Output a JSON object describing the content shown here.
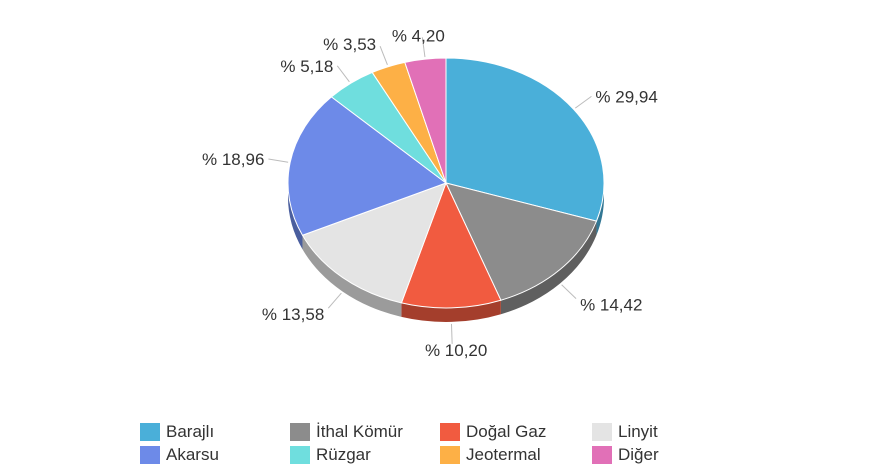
{
  "chart_data": {
    "type": "pie",
    "style": "3d",
    "label_prefix": "% ",
    "categories": [
      "Barajlı",
      "İthal Kömür",
      "Doğal Gaz",
      "Linyit",
      "Akarsu",
      "Rüzgar",
      "Jeotermal",
      "Diğer"
    ],
    "values": [
      29.94,
      14.42,
      10.2,
      13.58,
      18.96,
      5.18,
      3.53,
      4.2
    ],
    "labels": [
      "% 29,94",
      "% 14,42",
      "% 10,20",
      "% 13,58",
      "% 18,96",
      "% 5,18",
      "% 3,53",
      "% 4,20"
    ],
    "colors": [
      "#4aafd9",
      "#8c8c8c",
      "#f15b40",
      "#e4e4e4",
      "#6d8ae8",
      "#6fdede",
      "#fdb046",
      "#e170b7"
    ],
    "legend_position": "bottom",
    "title": ""
  }
}
